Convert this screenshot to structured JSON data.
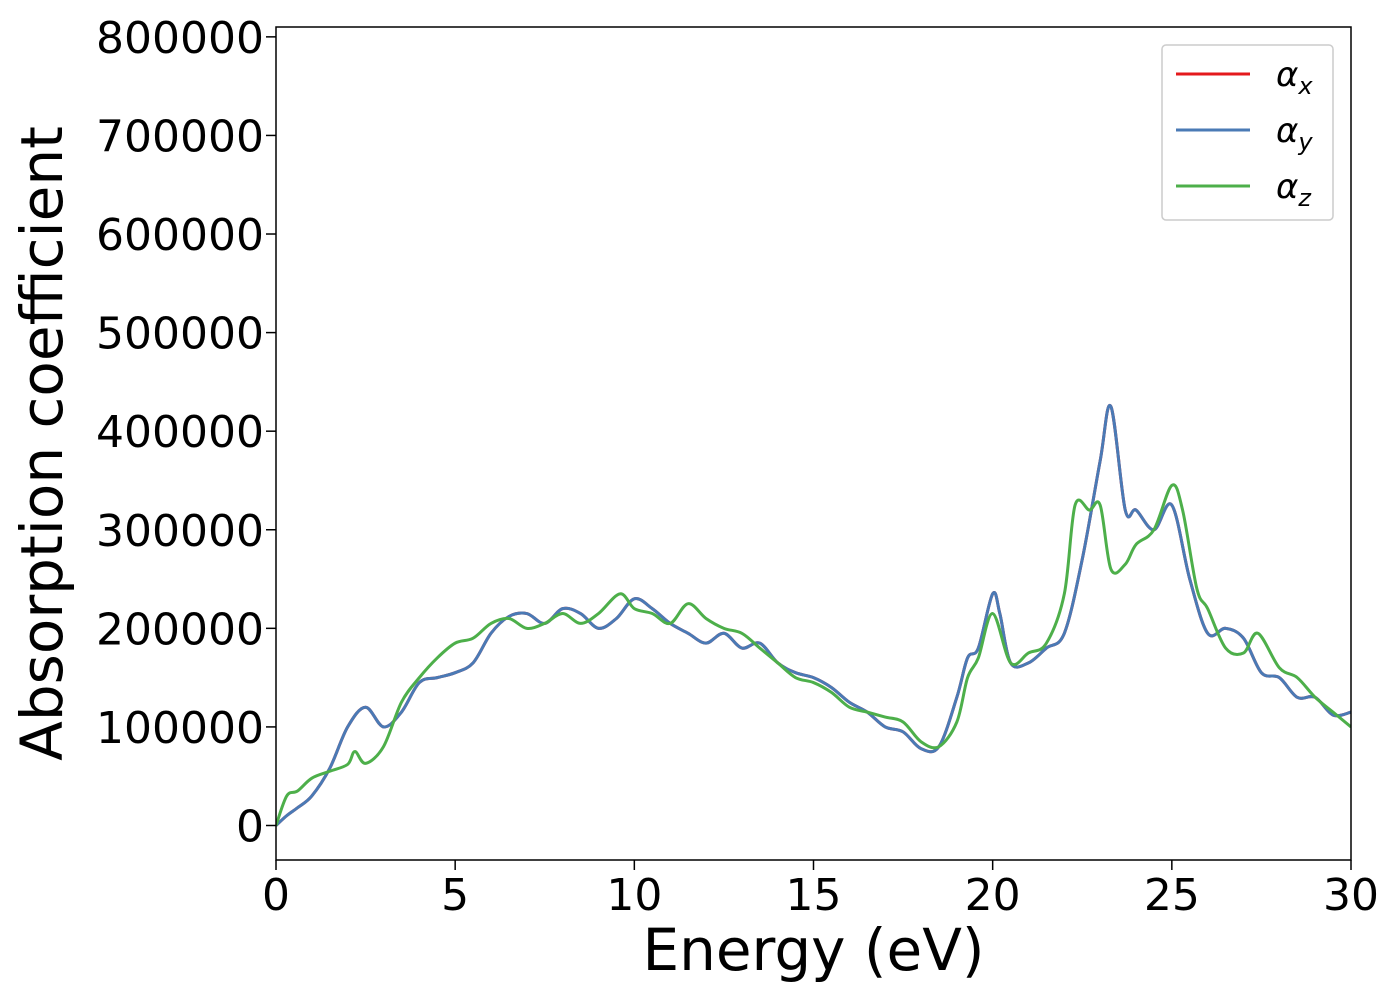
{
  "chart_data": {
    "type": "line",
    "xlabel": "Energy (eV)",
    "ylabel": "Absorption coefficient",
    "xlim": [
      0,
      30
    ],
    "ylim": [
      -35000,
      810000
    ],
    "xticks": [
      0,
      5,
      10,
      15,
      20,
      25,
      30
    ],
    "xtick_labels": [
      "0",
      "5",
      "10",
      "15",
      "20",
      "25",
      "30"
    ],
    "yticks": [
      0,
      100000,
      200000,
      300000,
      400000,
      500000,
      600000,
      700000,
      800000
    ],
    "ytick_labels": [
      "0",
      "100000",
      "200000",
      "300000",
      "400000",
      "500000",
      "600000",
      "700000",
      "800000"
    ],
    "grid": false,
    "legend_position": "top-right",
    "series": [
      {
        "name": "αx",
        "symbol": "α",
        "subscript": "x",
        "color": "#e41a1c",
        "x": [
          0,
          0.3,
          0.6,
          1.0,
          1.5,
          2.0,
          2.5,
          3.0,
          3.5,
          4.0,
          4.5,
          5.0,
          5.5,
          6.0,
          6.5,
          7.0,
          7.5,
          8.0,
          8.5,
          9.0,
          9.5,
          10.0,
          10.5,
          11.0,
          11.5,
          12.0,
          12.5,
          13.0,
          13.5,
          14.0,
          14.5,
          15.0,
          15.5,
          16.0,
          16.5,
          17.0,
          17.5,
          18.0,
          18.5,
          19.0,
          19.3,
          19.6,
          20.0,
          20.2,
          20.5,
          21.0,
          21.5,
          22.0,
          22.5,
          23.0,
          23.3,
          23.7,
          24.0,
          24.5,
          25.0,
          25.5,
          26.0,
          26.5,
          27.0,
          27.5,
          28.0,
          28.5,
          29.0,
          29.5,
          30.0
        ],
        "values": [
          0,
          10000,
          18000,
          30000,
          58000,
          100000,
          120000,
          100000,
          115000,
          145000,
          150000,
          155000,
          165000,
          195000,
          212000,
          215000,
          205000,
          220000,
          215000,
          200000,
          210000,
          230000,
          220000,
          205000,
          195000,
          185000,
          195000,
          180000,
          185000,
          165000,
          155000,
          150000,
          140000,
          125000,
          115000,
          100000,
          95000,
          78000,
          80000,
          130000,
          170000,
          180000,
          235000,
          215000,
          165000,
          165000,
          180000,
          195000,
          270000,
          370000,
          425000,
          320000,
          320000,
          300000,
          325000,
          250000,
          195000,
          200000,
          190000,
          155000,
          150000,
          130000,
          130000,
          112000,
          115000
        ]
      },
      {
        "name": "αy",
        "symbol": "α",
        "subscript": "y",
        "color": "#4a7ab5",
        "x": [
          0,
          0.3,
          0.6,
          1.0,
          1.5,
          2.0,
          2.5,
          3.0,
          3.5,
          4.0,
          4.5,
          5.0,
          5.5,
          6.0,
          6.5,
          7.0,
          7.5,
          8.0,
          8.5,
          9.0,
          9.5,
          10.0,
          10.5,
          11.0,
          11.5,
          12.0,
          12.5,
          13.0,
          13.5,
          14.0,
          14.5,
          15.0,
          15.5,
          16.0,
          16.5,
          17.0,
          17.5,
          18.0,
          18.5,
          19.0,
          19.3,
          19.6,
          20.0,
          20.2,
          20.5,
          21.0,
          21.5,
          22.0,
          22.5,
          23.0,
          23.3,
          23.7,
          24.0,
          24.5,
          25.0,
          25.5,
          26.0,
          26.5,
          27.0,
          27.5,
          28.0,
          28.5,
          29.0,
          29.5,
          30.0
        ],
        "values": [
          0,
          10000,
          18000,
          30000,
          58000,
          100000,
          120000,
          100000,
          115000,
          145000,
          150000,
          155000,
          165000,
          195000,
          212000,
          215000,
          205000,
          220000,
          215000,
          200000,
          210000,
          230000,
          220000,
          205000,
          195000,
          185000,
          195000,
          180000,
          185000,
          165000,
          155000,
          150000,
          140000,
          125000,
          115000,
          100000,
          95000,
          78000,
          80000,
          130000,
          170000,
          180000,
          235000,
          215000,
          165000,
          165000,
          180000,
          195000,
          270000,
          370000,
          425000,
          320000,
          320000,
          300000,
          325000,
          250000,
          195000,
          200000,
          190000,
          155000,
          150000,
          130000,
          130000,
          112000,
          115000
        ]
      },
      {
        "name": "αz",
        "symbol": "α",
        "subscript": "z",
        "color": "#4daf4a",
        "x": [
          0,
          0.3,
          0.6,
          1.0,
          1.5,
          2.0,
          2.2,
          2.5,
          3.0,
          3.5,
          4.0,
          4.5,
          5.0,
          5.5,
          6.0,
          6.5,
          7.0,
          7.5,
          8.0,
          8.5,
          9.0,
          9.6,
          10.0,
          10.5,
          11.0,
          11.5,
          12.0,
          12.5,
          13.0,
          13.5,
          14.0,
          14.5,
          15.0,
          15.5,
          16.0,
          16.5,
          17.0,
          17.5,
          18.0,
          18.5,
          19.0,
          19.3,
          19.6,
          20.0,
          20.5,
          21.0,
          21.5,
          22.0,
          22.3,
          22.7,
          23.0,
          23.3,
          23.7,
          24.0,
          24.5,
          25.0,
          25.3,
          25.7,
          26.0,
          26.5,
          27.0,
          27.4,
          28.0,
          28.5,
          29.0,
          29.5,
          30.0
        ],
        "values": [
          0,
          30000,
          35000,
          48000,
          55000,
          62000,
          75000,
          63000,
          80000,
          125000,
          150000,
          170000,
          185000,
          190000,
          205000,
          210000,
          200000,
          205000,
          215000,
          205000,
          215000,
          235000,
          220000,
          215000,
          205000,
          225000,
          210000,
          200000,
          195000,
          180000,
          165000,
          150000,
          145000,
          135000,
          120000,
          115000,
          110000,
          105000,
          85000,
          80000,
          105000,
          150000,
          170000,
          215000,
          165000,
          175000,
          185000,
          235000,
          325000,
          320000,
          325000,
          260000,
          265000,
          285000,
          300000,
          345000,
          320000,
          240000,
          220000,
          180000,
          175000,
          195000,
          160000,
          150000,
          130000,
          115000,
          100000
        ]
      }
    ]
  }
}
